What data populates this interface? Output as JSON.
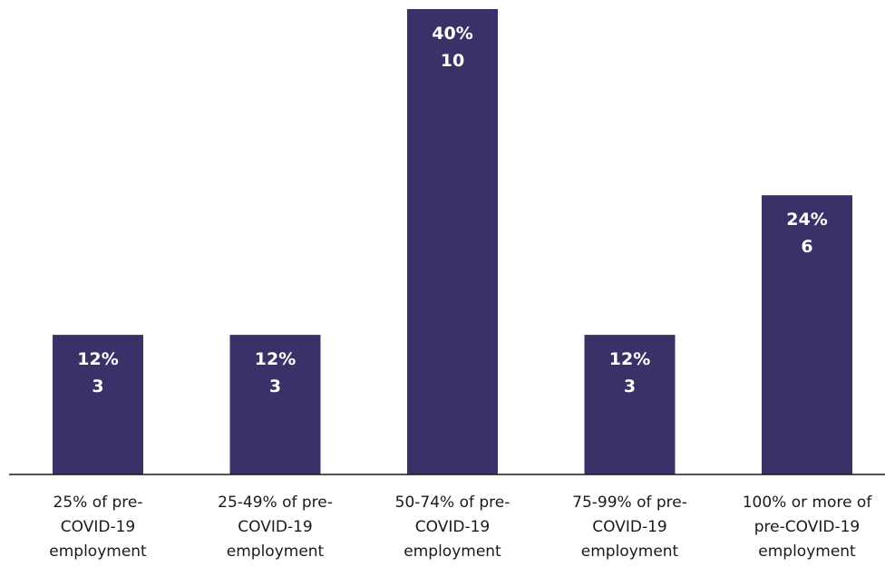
{
  "chart_data": {
    "type": "bar",
    "categories": [
      [
        "25% of pre-",
        "COVID-19",
        "employment"
      ],
      [
        "25-49% of pre-",
        "COVID-19",
        "employment"
      ],
      [
        "50-74% of pre-",
        "COVID-19",
        "employment"
      ],
      [
        "75-99% of pre-",
        "COVID-19",
        "employment"
      ],
      [
        "100% or more of",
        "pre-COVID-19",
        "employment"
      ]
    ],
    "values": [
      3,
      3,
      10,
      3,
      6
    ],
    "percent_labels": [
      "12%",
      "12%",
      "40%",
      "12%",
      "24%"
    ],
    "count_labels": [
      "3",
      "3",
      "10",
      "3",
      "6"
    ],
    "ylim": [
      0,
      10
    ],
    "grid": false,
    "bar_color": "#3b3168",
    "label_color": "#ffffff",
    "axis_color": "#1a1a1a"
  }
}
